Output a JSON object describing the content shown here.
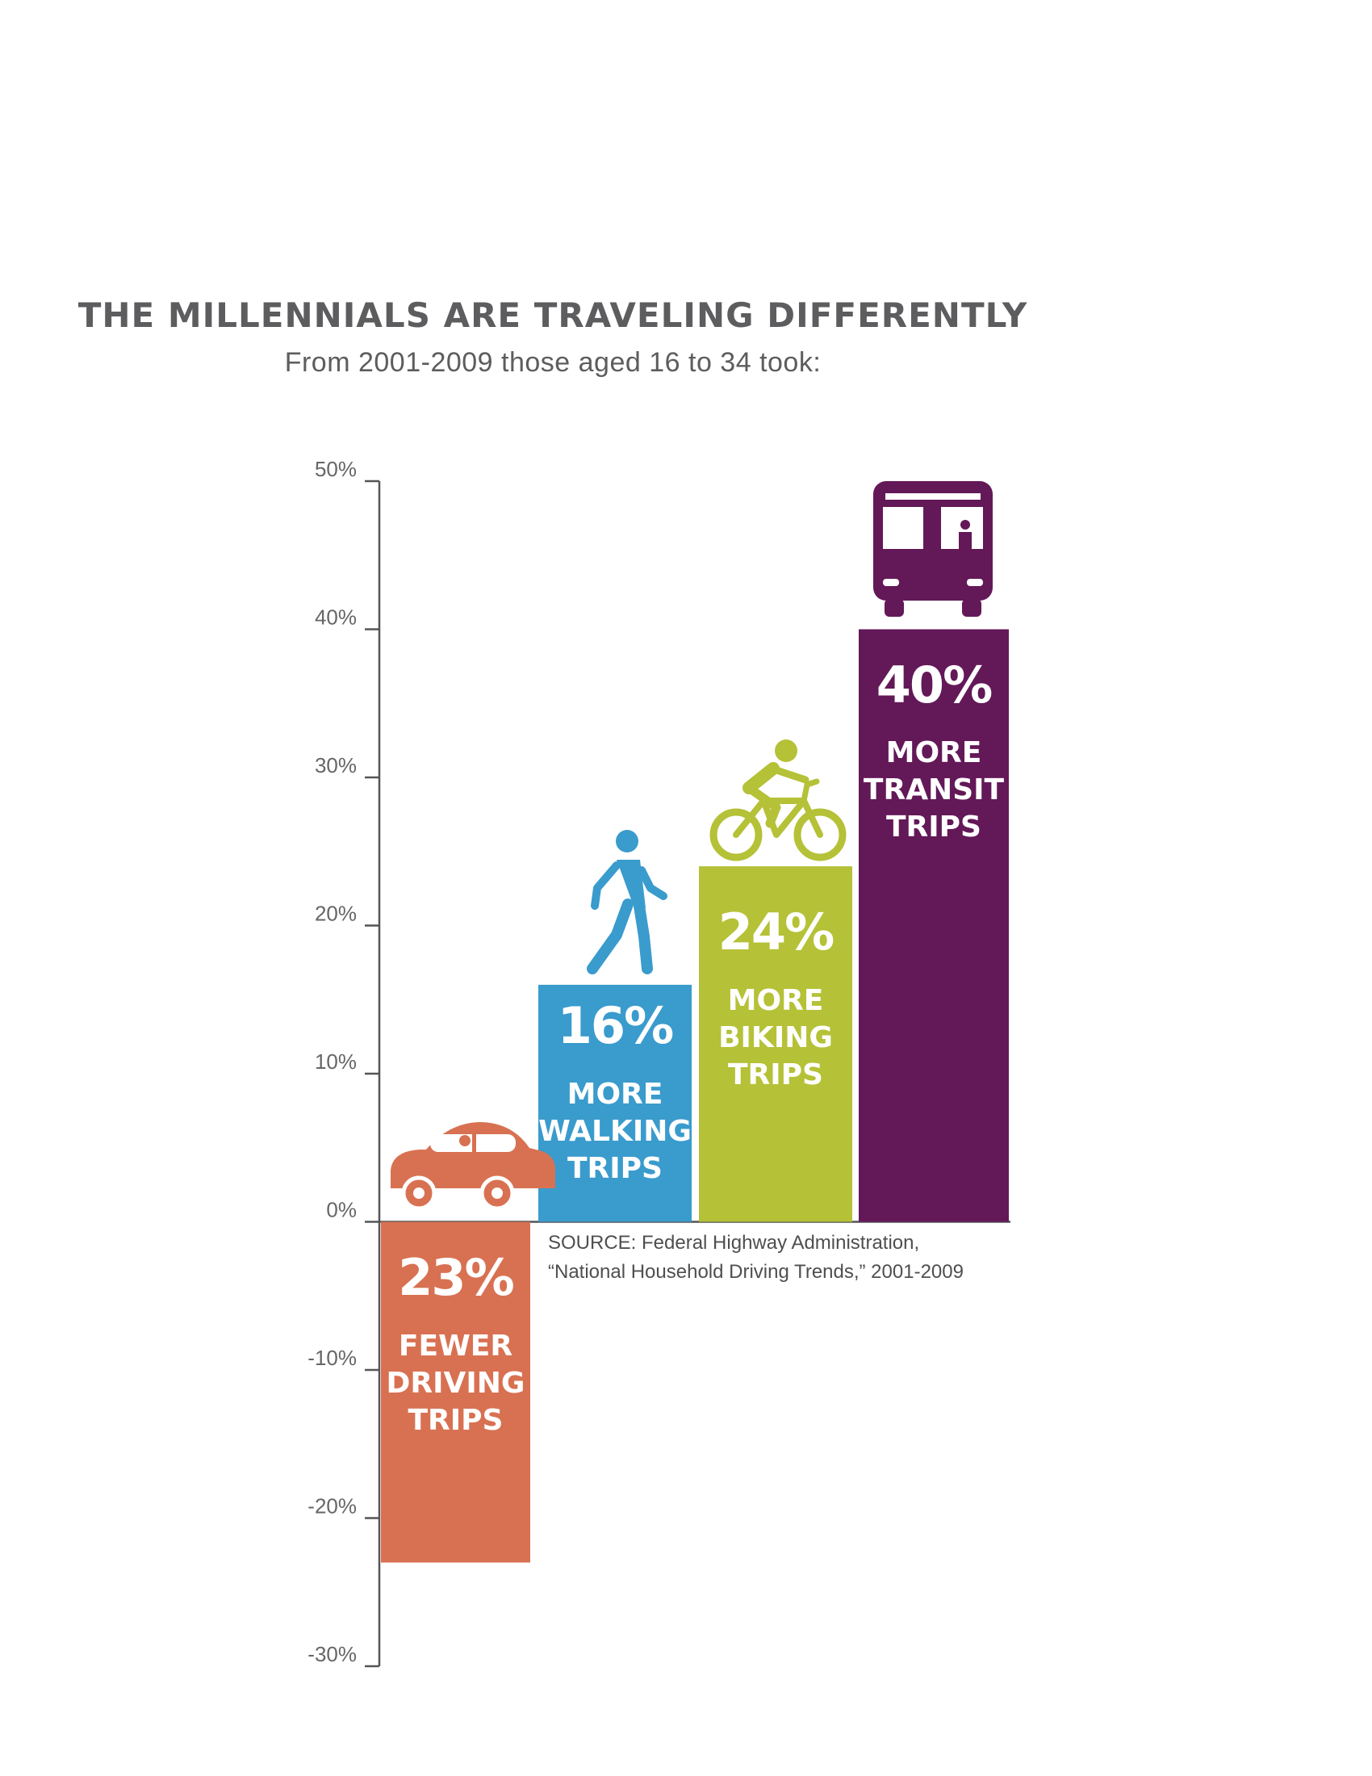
{
  "chart_data": {
    "type": "bar",
    "title": "THE MILLENNIALS ARE TRAVELING DIFFERENTLY",
    "subtitle": "From 2001-2009 those aged 16 to 34 took:",
    "ylim": [
      -30,
      50
    ],
    "yticks": [
      50,
      40,
      30,
      20,
      10,
      0,
      -10,
      -20,
      -30
    ],
    "ytick_labels": [
      "50%",
      "40%",
      "30%",
      "20%",
      "10%",
      "0%",
      "-10%",
      "-20%",
      "-30%"
    ],
    "grid": false,
    "categories": [
      "driving",
      "walking",
      "biking",
      "transit"
    ],
    "values": [
      -23,
      16,
      24,
      40
    ],
    "bars": [
      {
        "pct": "23%",
        "lines": [
          "FEWER",
          "DRIVING",
          "TRIPS"
        ],
        "color": "#d87152",
        "icon": "car-icon"
      },
      {
        "pct": "16%",
        "lines": [
          "MORE",
          "WALKING",
          "TRIPS"
        ],
        "color": "#3a9bcd",
        "icon": "walking-person-icon"
      },
      {
        "pct": "24%",
        "lines": [
          "MORE",
          "BIKING",
          "TRIPS"
        ],
        "color": "#b5c137",
        "icon": "cyclist-icon"
      },
      {
        "pct": "40%",
        "lines": [
          "MORE",
          "TRANSIT",
          "TRIPS"
        ],
        "color": "#631858",
        "icon": "bus-icon"
      }
    ],
    "source": [
      "SOURCE: Federal Highway Administration,",
      "“National Household Driving Trends,” 2001-2009"
    ]
  }
}
